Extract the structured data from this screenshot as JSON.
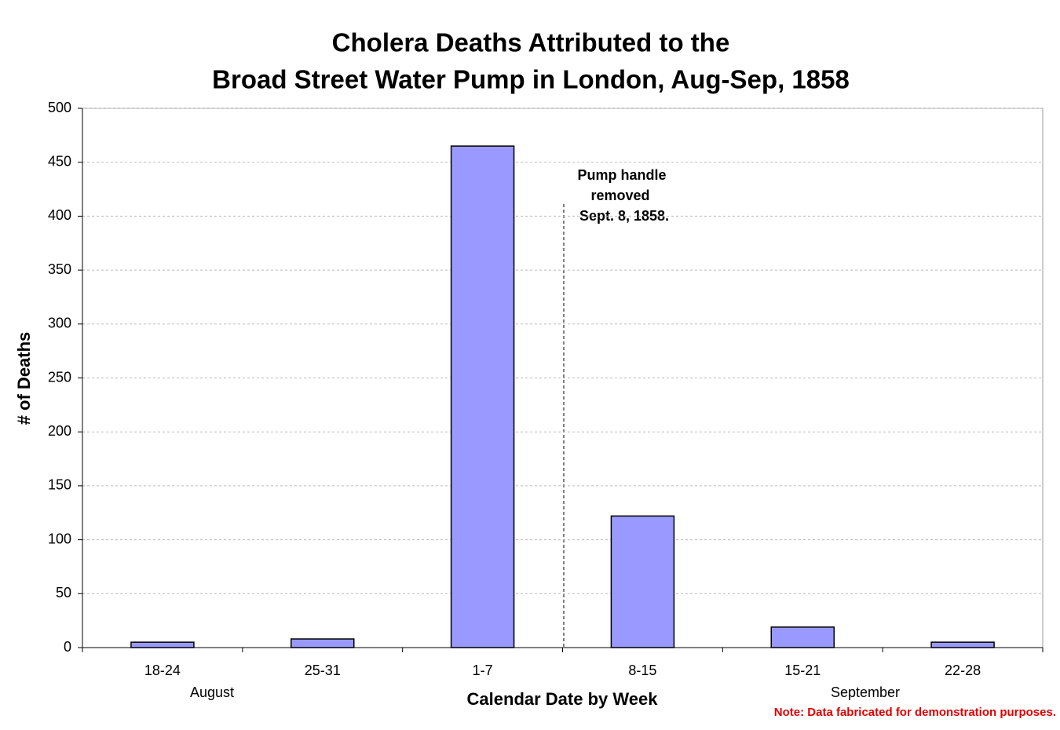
{
  "chart_data": {
    "type": "bar",
    "title": [
      "Cholera Deaths Attributed to the",
      "Broad Street Water Pump in London, Aug-Sep, 1858"
    ],
    "x_label": "Calendar Date by Week",
    "y_label": "# of Deaths",
    "categories": [
      "18-24",
      "25-31",
      "1-7",
      "8-15",
      "15-21",
      "22-28"
    ],
    "values": [
      5,
      8,
      465,
      122,
      19,
      5
    ],
    "color": "#9999ff",
    "group_labels": [
      "August",
      "September"
    ],
    "annotation": [
      "Pump handle",
      "removed",
      "Sept. 8, 1858."
    ],
    "note": "Note: Data fabricated for demonstration purposes.",
    "ylim": [
      0,
      500
    ],
    "yticks": [
      0,
      50,
      100,
      150,
      200,
      250,
      300,
      350,
      400,
      450,
      500
    ],
    "grid": true
  }
}
